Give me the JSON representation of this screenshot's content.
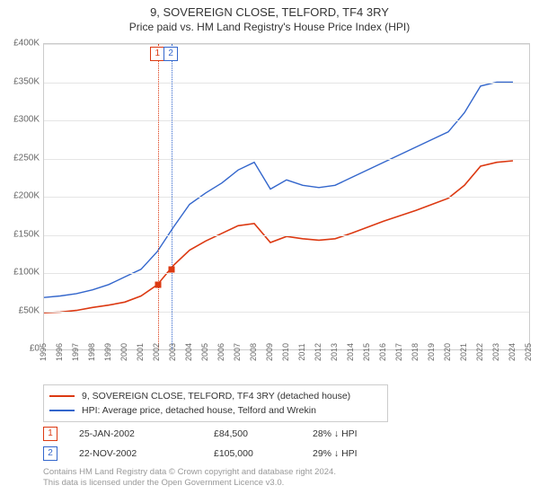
{
  "title": "9, SOVEREIGN CLOSE, TELFORD, TF4 3RY",
  "subtitle": "Price paid vs. HM Land Registry's House Price Index (HPI)",
  "chart": {
    "type": "line",
    "x_years": [
      1995,
      1996,
      1997,
      1998,
      1999,
      2000,
      2001,
      2002,
      2003,
      2004,
      2005,
      2006,
      2007,
      2008,
      2009,
      2010,
      2011,
      2012,
      2013,
      2014,
      2015,
      2016,
      2017,
      2018,
      2019,
      2020,
      2021,
      2022,
      2023,
      2024,
      2025
    ],
    "xlim": [
      1995,
      2025
    ],
    "ylim": [
      0,
      400000
    ],
    "ytick_step": 50000,
    "ytick_labels": [
      "£0",
      "£50K",
      "£100K",
      "£150K",
      "£200K",
      "£250K",
      "£300K",
      "£350K",
      "£400K"
    ],
    "gridline_color": "#e5e5e5",
    "border_color": "#cccccc",
    "background_color": "#ffffff",
    "tick_font_size": 10,
    "series": [
      {
        "name": "property",
        "label": "9, SOVEREIGN CLOSE, TELFORD, TF4 3RY (detached house)",
        "color": "#dc3912",
        "line_width": 1.6,
        "x": [
          1995,
          1996,
          1997,
          1998,
          1999,
          2000,
          2001,
          2002,
          2003,
          2004,
          2005,
          2006,
          2007,
          2008,
          2009,
          2010,
          2011,
          2012,
          2013,
          2014,
          2015,
          2016,
          2017,
          2018,
          2019,
          2020,
          2021,
          2022,
          2023,
          2024
        ],
        "y": [
          48000,
          49000,
          51000,
          55000,
          58000,
          62000,
          70000,
          84500,
          110000,
          130000,
          142000,
          152000,
          162000,
          165000,
          140000,
          148000,
          145000,
          143000,
          145000,
          152000,
          160000,
          168000,
          175000,
          182000,
          190000,
          198000,
          215000,
          240000,
          245000,
          247000
        ]
      },
      {
        "name": "hpi",
        "label": "HPI: Average price, detached house, Telford and Wrekin",
        "color": "#3366cc",
        "line_width": 1.4,
        "x": [
          1995,
          1996,
          1997,
          1998,
          1999,
          2000,
          2001,
          2002,
          2003,
          2004,
          2005,
          2006,
          2007,
          2008,
          2009,
          2010,
          2011,
          2012,
          2013,
          2014,
          2015,
          2016,
          2017,
          2018,
          2019,
          2020,
          2021,
          2022,
          2023,
          2024
        ],
        "y": [
          68000,
          70000,
          73000,
          78000,
          85000,
          95000,
          105000,
          128000,
          160000,
          190000,
          205000,
          218000,
          235000,
          245000,
          210000,
          222000,
          215000,
          212000,
          215000,
          225000,
          235000,
          245000,
          255000,
          265000,
          275000,
          285000,
          310000,
          345000,
          350000,
          350000
        ]
      }
    ],
    "events": [
      {
        "index": "1",
        "x": 2002.07,
        "date": "25-JAN-2002",
        "price": "£84,500",
        "pct": "28% ↓ HPI",
        "color": "#dc3912",
        "marker_y": 84500
      },
      {
        "index": "2",
        "x": 2002.9,
        "date": "22-NOV-2002",
        "price": "£105,000",
        "pct": "29% ↓ HPI",
        "color": "#3366cc",
        "marker_y": 105000
      }
    ]
  },
  "legend": {
    "border_color": "#cccccc",
    "font_size": 10.5
  },
  "footnote_line1": "Contains HM Land Registry data © Crown copyright and database right 2024.",
  "footnote_line2": "This data is licensed under the Open Government Licence v3.0."
}
